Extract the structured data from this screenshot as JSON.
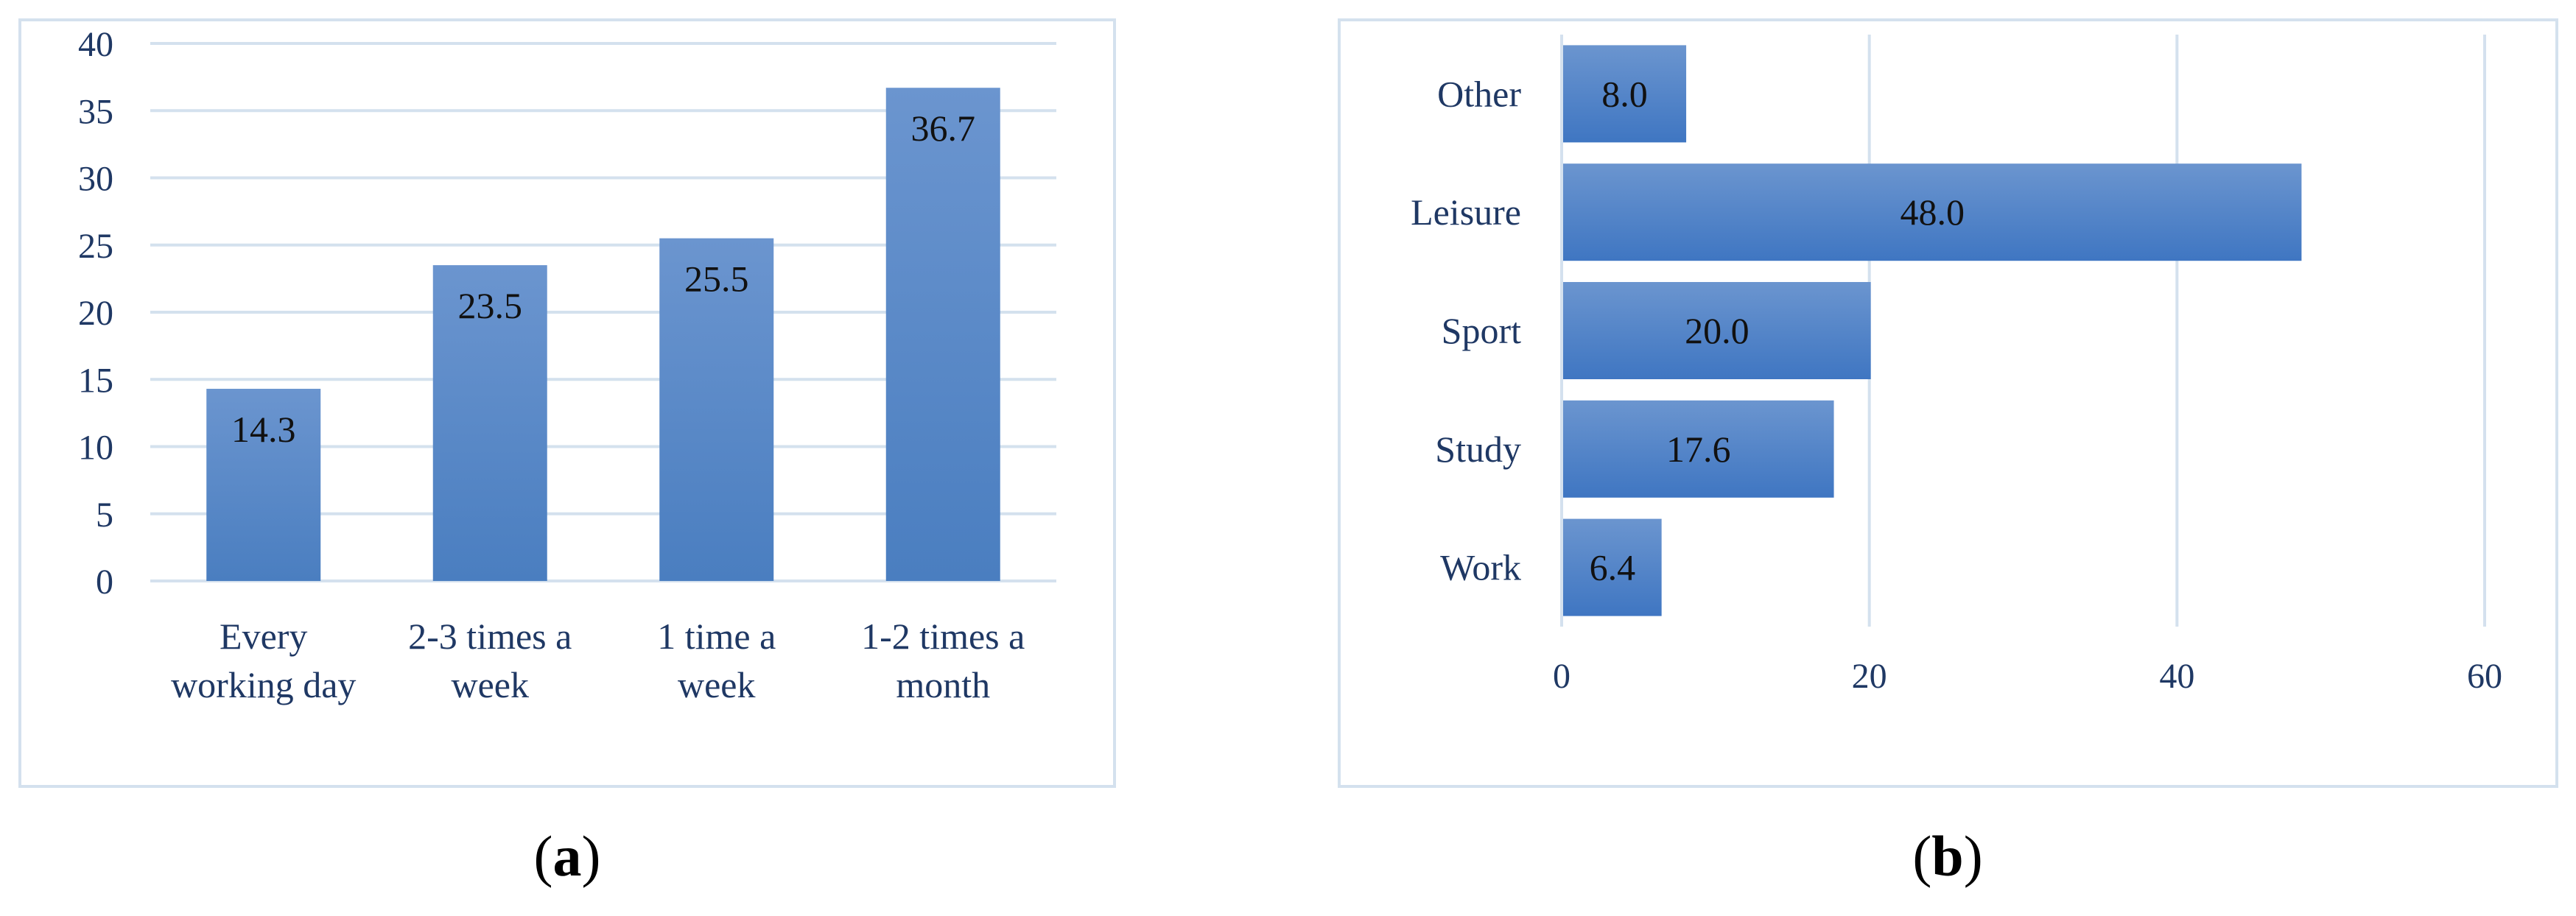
{
  "chart_data": [
    {
      "type": "bar",
      "orientation": "vertical",
      "panel": "a",
      "categories": [
        [
          "Every",
          "working day"
        ],
        [
          "2-3 times a",
          "week"
        ],
        [
          "1 time a",
          "week"
        ],
        [
          "1-2 times a",
          "month"
        ]
      ],
      "values": [
        14.3,
        23.5,
        25.5,
        36.7
      ],
      "value_labels": [
        "14.3",
        "23.5",
        "25.5",
        "36.7"
      ],
      "ylim": [
        0,
        40
      ],
      "yticks": [
        0,
        5,
        10,
        15,
        20,
        25,
        30,
        35,
        40
      ],
      "grid": true,
      "bar_color": "#4a7ec0",
      "grid_color": "#d4e1ee",
      "tick_label_color": "#1f3864",
      "value_label_color": "#111111"
    },
    {
      "type": "bar",
      "orientation": "horizontal",
      "panel": "b",
      "categories": [
        "Other",
        "Leisure",
        "Sport",
        "Study",
        "Work"
      ],
      "values": [
        8.0,
        48.0,
        20.0,
        17.6,
        6.4
      ],
      "value_labels": [
        "8.0",
        "48.0",
        "20.0",
        "17.6",
        "6.4"
      ],
      "xlim": [
        0,
        60
      ],
      "xticks": [
        0,
        20,
        40,
        60
      ],
      "grid": true,
      "bar_color": "#3f76c2",
      "grid_color": "#d4e1ee",
      "tick_label_color": "#1f3864",
      "value_label_color": "#111111"
    }
  ],
  "captions": {
    "a": {
      "open": "(",
      "letter": "a",
      "close": ")"
    },
    "b": {
      "open": "(",
      "letter": "b",
      "close": ")"
    }
  }
}
